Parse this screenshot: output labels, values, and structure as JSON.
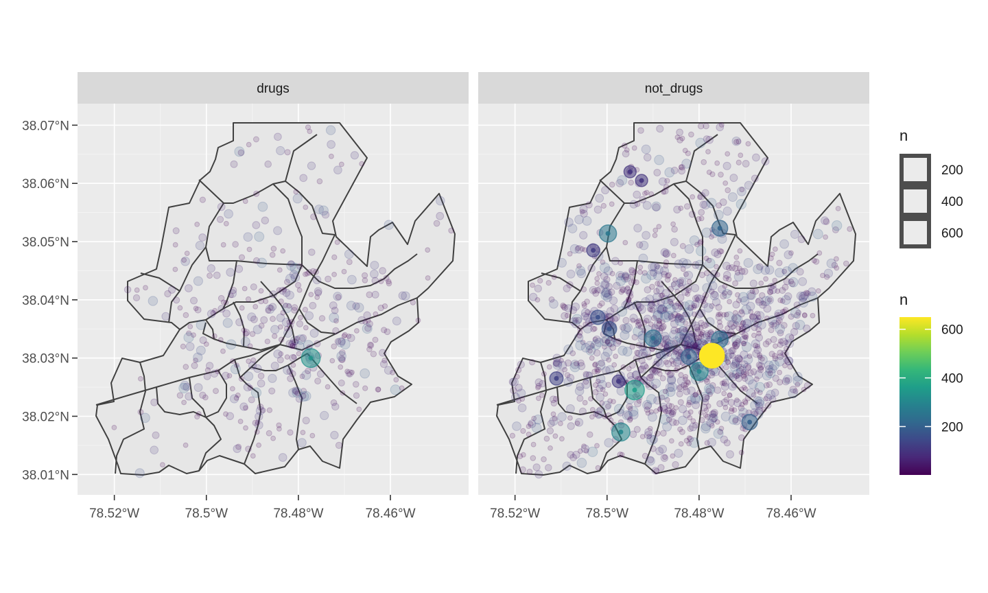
{
  "chart_data": {
    "type": "scatter",
    "subtype": "faceted choropleth map with proportional symbols",
    "facets": [
      "drugs",
      "not_drugs"
    ],
    "x_ticks": [
      -78.52,
      -78.5,
      -78.48,
      -78.46
    ],
    "x_tick_labels": [
      "78.52°W",
      "78.5°W",
      "78.48°W",
      "78.46°W"
    ],
    "y_ticks": [
      38.01,
      38.02,
      38.03,
      38.04,
      38.05,
      38.06,
      38.07
    ],
    "y_tick_labels": [
      "38.01°N",
      "38.02°N",
      "38.03°N",
      "38.04°N",
      "38.05°N",
      "38.06°N",
      "38.07°N"
    ],
    "xlim": [
      -78.528,
      -78.443
    ],
    "ylim": [
      38.0065,
      38.0737
    ],
    "grid": true,
    "legend_position": "right",
    "legend_size": {
      "title": "n",
      "breaks": [
        200,
        400,
        600
      ],
      "labels": [
        "200",
        "400",
        "600"
      ]
    },
    "legend_color": {
      "title": "n",
      "breaks": [
        200,
        400,
        600
      ],
      "labels": [
        "200",
        "400",
        "600"
      ],
      "range": [
        1,
        650
      ],
      "palette": [
        "#440154",
        "#482878",
        "#3e4989",
        "#31688e",
        "#26828e",
        "#1f9e89",
        "#35b779",
        "#6ece58",
        "#b5de2b",
        "#fde725"
      ]
    },
    "highlighted_points": {
      "drugs": [
        {
          "lon": -78.4773,
          "lat": 38.03,
          "n": 330
        }
      ],
      "not_drugs": [
        {
          "lon": -78.4772,
          "lat": 38.0304,
          "n": 650
        },
        {
          "lon": -78.48,
          "lat": 38.0277,
          "n": 300
        },
        {
          "lon": -78.4822,
          "lat": 38.0302,
          "n": 200
        },
        {
          "lon": -78.4755,
          "lat": 38.0332,
          "n": 240
        },
        {
          "lon": -78.494,
          "lat": 38.0245,
          "n": 360
        },
        {
          "lon": -78.497,
          "lat": 38.0173,
          "n": 300
        },
        {
          "lon": -78.4998,
          "lat": 38.0514,
          "n": 260
        },
        {
          "lon": -78.49,
          "lat": 38.0334,
          "n": 240
        },
        {
          "lon": -78.4755,
          "lat": 38.0523,
          "n": 210
        },
        {
          "lon": -78.469,
          "lat": 38.019,
          "n": 200
        },
        {
          "lon": -78.4995,
          "lat": 38.035,
          "n": 170
        },
        {
          "lon": -78.502,
          "lat": 38.037,
          "n": 160
        },
        {
          "lon": -78.503,
          "lat": 38.0485,
          "n": 120
        },
        {
          "lon": -78.511,
          "lat": 38.0265,
          "n": 130
        },
        {
          "lon": -78.495,
          "lat": 38.062,
          "n": 100
        },
        {
          "lon": -78.4925,
          "lat": 38.0605,
          "n": 100
        },
        {
          "lon": -78.4975,
          "lat": 38.026,
          "n": 110
        }
      ]
    },
    "background_points": {
      "drugs_count": 420,
      "not_drugs_count": 1450,
      "n_range": [
        1,
        60
      ]
    }
  }
}
